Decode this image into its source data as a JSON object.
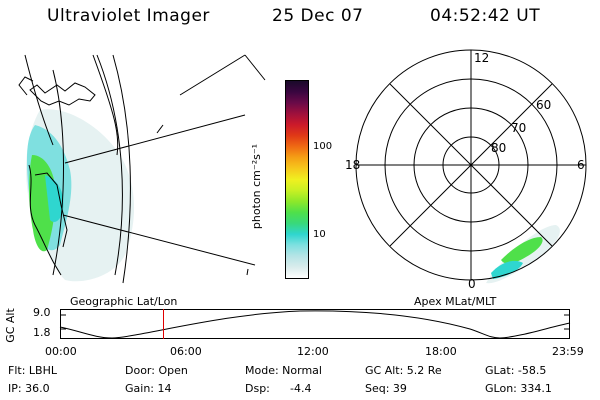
{
  "header": {
    "instrument": "Ultraviolet Imager",
    "date": "25 Dec 07",
    "time": "04:52:42 UT"
  },
  "colorbar": {
    "unit_label": "photon cm⁻²s⁻¹",
    "ticks": [
      "100",
      "10"
    ],
    "colors": [
      "#ffffff",
      "#d9ecec",
      "#b6e4e6",
      "#7fe0e0",
      "#2fd6cf",
      "#38d97a",
      "#4fe04a",
      "#8ee82a",
      "#c8f024",
      "#f0f020",
      "#f6c81c",
      "#f5a015",
      "#ef6a13",
      "#e03a16",
      "#cc1a2a",
      "#a0103c",
      "#6a0a48",
      "#3a0640",
      "#1a0a2a"
    ]
  },
  "geo_map": {
    "label": "Geographic Lat/Lon"
  },
  "polar_map": {
    "label": "Apex MLat/MLT",
    "mlt_labels": {
      "top": "12",
      "left": "18",
      "right": "6",
      "bottom": "0"
    },
    "lat_labels": [
      "60",
      "70",
      "80"
    ]
  },
  "altitude_plot": {
    "ylabel": "GC Alt",
    "yticks": [
      "9.0",
      "1.8"
    ],
    "xticks": [
      "00:00",
      "06:00",
      "12:00",
      "18:00",
      "23:59"
    ],
    "current_time_fraction": 0.203,
    "colors": {
      "marker": "#e00000"
    }
  },
  "footer": {
    "row1": {
      "flt": "Flt: LBHL",
      "door": "Door: Open",
      "mode": "Mode: Normal",
      "gcalt": "GC Alt: 5.2 Re",
      "glat": "GLat: -58.5"
    },
    "row2": {
      "ip": "IP: 36.0",
      "gain": "Gain: 14",
      "dsp_label": "Dsp:",
      "dsp_value": "-4.4",
      "seq": "Seq: 39",
      "glon": "GLon: 334.1"
    }
  }
}
